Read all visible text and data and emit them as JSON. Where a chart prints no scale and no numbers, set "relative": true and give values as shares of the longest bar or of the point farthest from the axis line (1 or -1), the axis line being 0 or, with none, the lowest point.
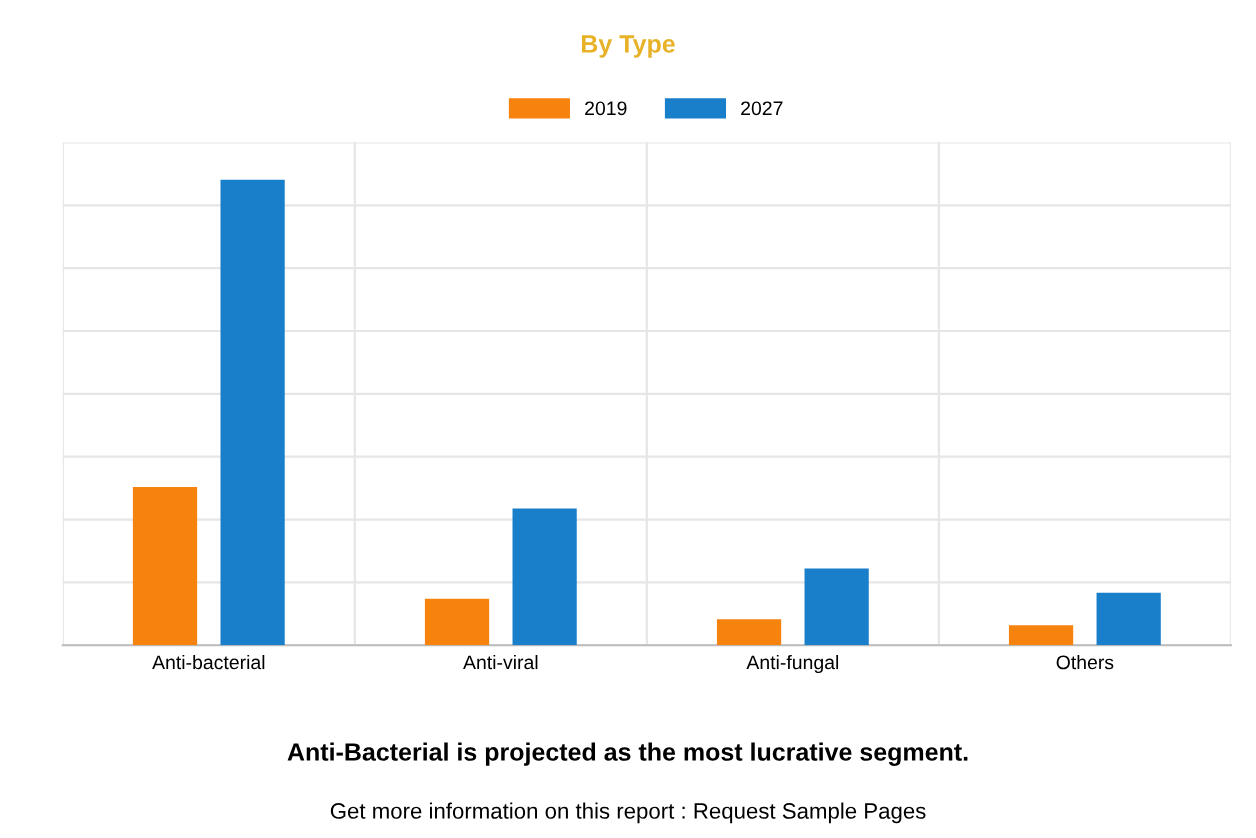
{
  "chart_data": {
    "type": "bar",
    "title": "By Type",
    "relative": true,
    "categories": [
      "Anti-bacterial",
      "Anti-viral",
      "Anti-fungal",
      "Others"
    ],
    "series": [
      {
        "name": "2019",
        "color": "#f7830f",
        "values": [
          0.34,
          0.1,
          0.056,
          0.043
        ]
      },
      {
        "name": "2027",
        "color": "#1a7fcb",
        "values": [
          1,
          0.294,
          0.165,
          0.113
        ]
      }
    ],
    "legend": "top",
    "grid": true,
    "annotations": [
      "Anti-Bacterial is projected as the most lucrative segment.",
      "Get more information on this report : Request Sample Pages"
    ]
  }
}
